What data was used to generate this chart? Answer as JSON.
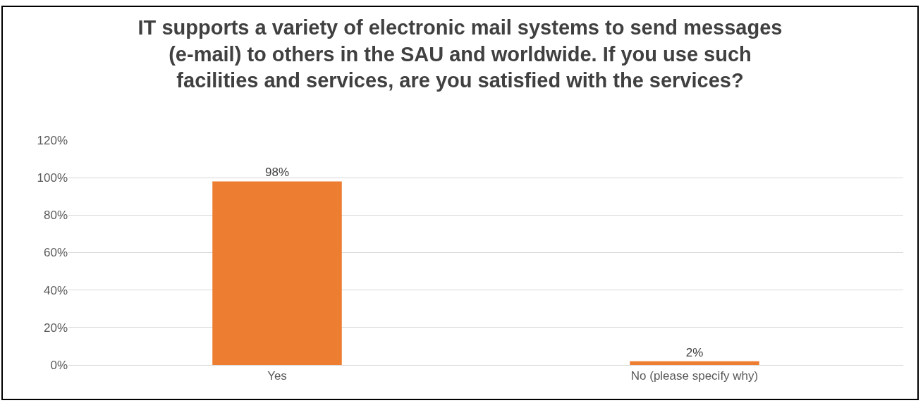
{
  "chart_data": {
    "type": "bar",
    "title": "IT supports a variety of electronic mail systems to send messages (e-mail) to others in the SAU and worldwide. If you use such facilities and services, are you satisfied with the services?",
    "categories": [
      "Yes",
      "No (please specify why)"
    ],
    "values": [
      98,
      2
    ],
    "color": "#ed7d31",
    "data_labels": true,
    "value_labels": [
      "98%",
      "2%"
    ],
    "ylim": [
      0,
      120
    ],
    "yticks": [
      {
        "value": 0,
        "label": "0%"
      },
      {
        "value": 20,
        "label": "20%"
      },
      {
        "value": 40,
        "label": "40%"
      },
      {
        "value": 60,
        "label": "60%"
      },
      {
        "value": 80,
        "label": "80%"
      },
      {
        "value": 100,
        "label": "100%"
      },
      {
        "value": 120,
        "label": "120%"
      }
    ],
    "grid": "y"
  }
}
